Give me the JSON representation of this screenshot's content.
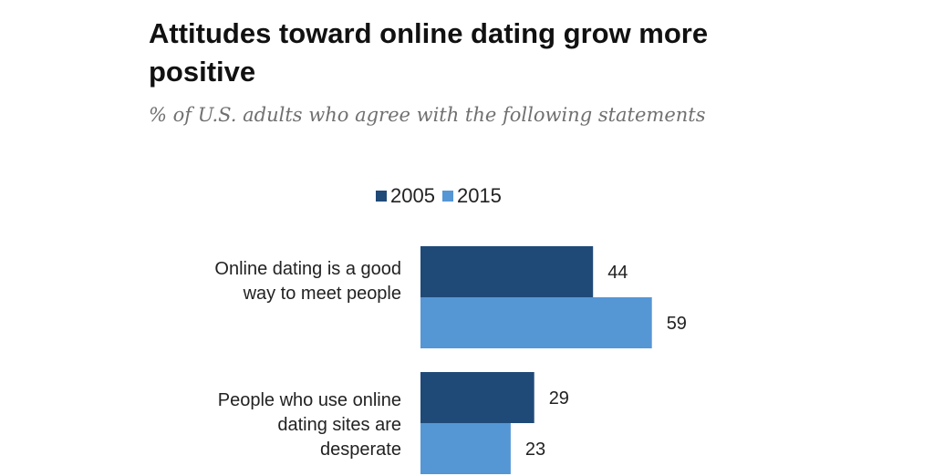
{
  "chart_data": {
    "type": "bar",
    "orientation": "horizontal",
    "title": "Attitudes toward online dating grow more positive",
    "subtitle": "% of U.S. adults who agree with the following statements",
    "categories": [
      "Online dating is a good way to meet people",
      "People who use online dating sites are desperate"
    ],
    "series": [
      {
        "name": "2005",
        "values": [
          44,
          29
        ],
        "color": "#1f4a78"
      },
      {
        "name": "2015",
        "values": [
          59,
          23
        ],
        "color": "#5596d5"
      }
    ],
    "legend_position": "top",
    "data_labels": true,
    "grid": false,
    "axis_visible": false
  }
}
